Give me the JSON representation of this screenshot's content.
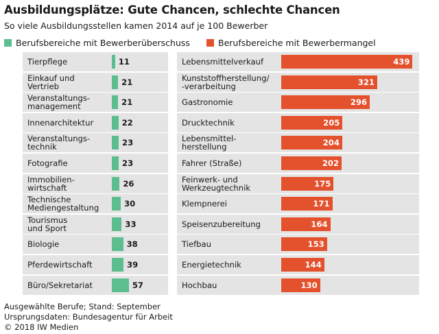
{
  "header": {
    "title": "Ausbildungsplätze: Gute Chancen, schlechte Chancen",
    "subtitle": "So viele Ausbildungsstellen kamen 2014 auf je 100 Bewerber"
  },
  "colors": {
    "surplus": "#5cbd8f",
    "shortage": "#e4512d",
    "row_shade": "#e4e4e4"
  },
  "chart_data": [
    {
      "type": "bar",
      "orientation": "horizontal",
      "series_name": "Berufsbereiche mit Bewerberüberschuss",
      "categories": [
        "Tierpflege",
        "Einkauf und\nVertrieb",
        "Veranstaltungs-\nmanagement",
        "Innenarchitektur",
        "Veranstaltungs-\ntechnik",
        "Fotografie",
        "Immobilien-\nwirtschaft",
        "Technische\nMediengestaltung",
        "Tourismus\nund Sport",
        "Biologie",
        "Pferdewirtschaft",
        "Büro/Sekretariat"
      ],
      "values": [
        11,
        21,
        21,
        22,
        23,
        23,
        26,
        30,
        33,
        38,
        39,
        57
      ],
      "xlim": [
        0,
        440
      ],
      "data_labels": [
        "11",
        "21",
        "21",
        "22",
        "23",
        "23",
        "26",
        "30",
        "33",
        "38",
        "39",
        "57"
      ]
    },
    {
      "type": "bar",
      "orientation": "horizontal",
      "series_name": "Berufsbereiche mit Bewerbermangel",
      "categories": [
        "Lebensmittelverkauf",
        "Kunststoffherstellung/\n-verarbeitung",
        "Gastronomie",
        "Drucktechnik",
        "Lebensmittel-\nherstellung",
        "Fahrer (Straße)",
        "Feinwerk- und\nWerkzeugtechnik",
        "Klempnerei",
        "Speisenzubereitung",
        "Tiefbau",
        "Energietechnik",
        "Hochbau"
      ],
      "values": [
        439,
        321,
        296,
        205,
        204,
        202,
        175,
        171,
        164,
        153,
        144,
        130
      ],
      "xlim": [
        0,
        440
      ],
      "data_labels": [
        "439",
        "321",
        "296",
        "205",
        "204",
        "202",
        "175",
        "171",
        "164",
        "153",
        "144",
        "130"
      ]
    }
  ],
  "footer": {
    "lines": [
      "Ausgewählte Berufe; Stand: September",
      "Ursprungsdaten: Bundesagentur für Arbeit",
      "© 2018 IW Medien"
    ]
  }
}
